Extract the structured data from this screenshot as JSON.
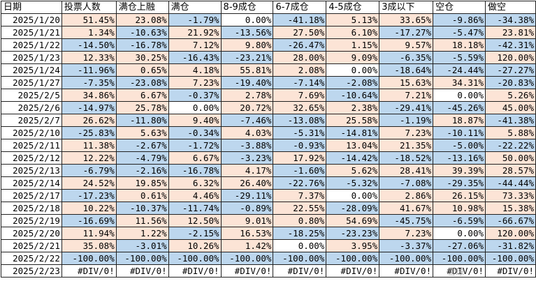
{
  "headers": [
    "日期",
    "投票人数",
    "满仓上融",
    "满仓",
    "8-9成仓",
    "6-7成仓",
    "4-5成仓",
    "3成以下",
    "空仓",
    "做空"
  ],
  "rows": [
    {
      "date": "2025/1/20",
      "cells": [
        "51.45%",
        "23.08%",
        "-1.79%",
        "0.00%",
        "-41.18%",
        "5.13%",
        "33.65%",
        "-9.86%",
        "-34.38%"
      ]
    },
    {
      "date": "2025/1/21",
      "cells": [
        "1.34%",
        "-10.63%",
        "21.92%",
        "-13.56%",
        "27.50%",
        "6.10%",
        "-17.27%",
        "-5.47%",
        "23.81%"
      ]
    },
    {
      "date": "2025/1/22",
      "cells": [
        "-14.50%",
        "-16.78%",
        "7.12%",
        "9.80%",
        "-26.47%",
        "1.15%",
        "9.57%",
        "18.18%",
        "-42.31%"
      ]
    },
    {
      "date": "2025/1/23",
      "cells": [
        "12.33%",
        "30.25%",
        "-16.43%",
        "-23.21%",
        "28.00%",
        "9.09%",
        "-6.35%",
        "-5.59%",
        "120.00%"
      ]
    },
    {
      "date": "2025/1/24",
      "cells": [
        "-11.96%",
        "0.65%",
        "4.18%",
        "55.81%",
        "2.08%",
        "0.00%",
        "-18.64%",
        "-24.44%",
        "-27.27%"
      ]
    },
    {
      "date": "2025/1/27",
      "cells": [
        "-7.35%",
        "-23.08%",
        "7.23%",
        "-19.40%",
        "-7.14%",
        "-2.08%",
        "15.63%",
        "34.31%",
        "-20.83%"
      ]
    },
    {
      "date": "2025/2/5",
      "cells": [
        "34.86%",
        "6.67%",
        "-0.37%",
        "2.78%",
        "7.69%",
        "-10.64%",
        "7.21%",
        "0.00%",
        "5.26%"
      ]
    },
    {
      "date": "2025/2/6",
      "cells": [
        "-14.97%",
        "25.78%",
        "0.00%",
        "20.72%",
        "32.65%",
        "2.38%",
        "-29.41%",
        "-45.26%",
        "45.00%"
      ]
    },
    {
      "date": "2025/2/7",
      "cells": [
        "26.62%",
        "-11.80%",
        "9.40%",
        "-7.46%",
        "-13.08%",
        "25.58%",
        "-1.19%",
        "18.87%",
        "-41.38%"
      ]
    },
    {
      "date": "2025/2/10",
      "cells": [
        "-25.83%",
        "5.63%",
        "-0.34%",
        "4.03%",
        "-5.31%",
        "-14.81%",
        "7.23%",
        "-10.11%",
        "5.88%"
      ]
    },
    {
      "date": "2025/2/11",
      "cells": [
        "11.38%",
        "-2.67%",
        "-1.72%",
        "-3.88%",
        "-0.93%",
        "13.04%",
        "21.35%",
        "-5.00%",
        "-22.22%"
      ]
    },
    {
      "date": "2025/2/12",
      "cells": [
        "12.22%",
        "-4.79%",
        "6.67%",
        "-3.23%",
        "17.92%",
        "-14.42%",
        "-18.52%",
        "-13.16%",
        "50.00%"
      ]
    },
    {
      "date": "2025/2/13",
      "cells": [
        "-6.79%",
        "-2.16%",
        "-16.78%",
        "4.17%",
        "-1.60%",
        "5.62%",
        "28.41%",
        "39.39%",
        "28.57%"
      ]
    },
    {
      "date": "2025/2/14",
      "cells": [
        "24.52%",
        "19.85%",
        "6.32%",
        "26.40%",
        "-22.76%",
        "-5.32%",
        "-7.08%",
        "-29.35%",
        "-44.44%"
      ]
    },
    {
      "date": "2025/2/17",
      "cells": [
        "-17.23%",
        "0.61%",
        "4.46%",
        "-29.11%",
        "7.37%",
        "0.00%",
        "2.86%",
        "26.15%",
        "73.33%"
      ]
    },
    {
      "date": "2025/2/18",
      "cells": [
        "10.22%",
        "-10.37%",
        "-11.74%",
        "-0.89%",
        "22.55%",
        "-28.09%",
        "41.67%",
        "10.98%",
        "15.38%"
      ]
    },
    {
      "date": "2025/2/19",
      "cells": [
        "-16.69%",
        "11.56%",
        "12.50%",
        "9.01%",
        "0.80%",
        "54.69%",
        "-45.75%",
        "-6.59%",
        "-66.67%"
      ]
    },
    {
      "date": "2025/2/20",
      "cells": [
        "11.94%",
        "1.22%",
        "-2.15%",
        "16.53%",
        "-18.25%",
        "-23.23%",
        "7.23%",
        "0.00%",
        "120.00%"
      ]
    },
    {
      "date": "2025/2/21",
      "cells": [
        "35.08%",
        "-3.01%",
        "10.26%",
        "1.42%",
        "0.00%",
        "3.95%",
        "-3.37%",
        "-27.06%",
        "-31.82%"
      ]
    },
    {
      "date": "2025/2/22",
      "cells": [
        "-100.00%",
        "-100.00%",
        "-100.00%",
        "-100.00%",
        "-100.00%",
        "-100.00%",
        "-100.00%",
        "-100.00%",
        "-100.00%"
      ]
    },
    {
      "date": "2025/2/23",
      "cells": [
        "#DIV/0!",
        "#DIV/0!",
        "#DIV/0!",
        "#DIV/0!",
        "#DIV/0!",
        "#DIV/0!",
        "#DIV/0!",
        "#DIV/0!",
        "#DIV/0!"
      ]
    }
  ],
  "colors": {
    "positive": "#fce4d6",
    "negative": "#bdd7ee",
    "neutral": "#ffffff"
  },
  "watermark": "雪球"
}
